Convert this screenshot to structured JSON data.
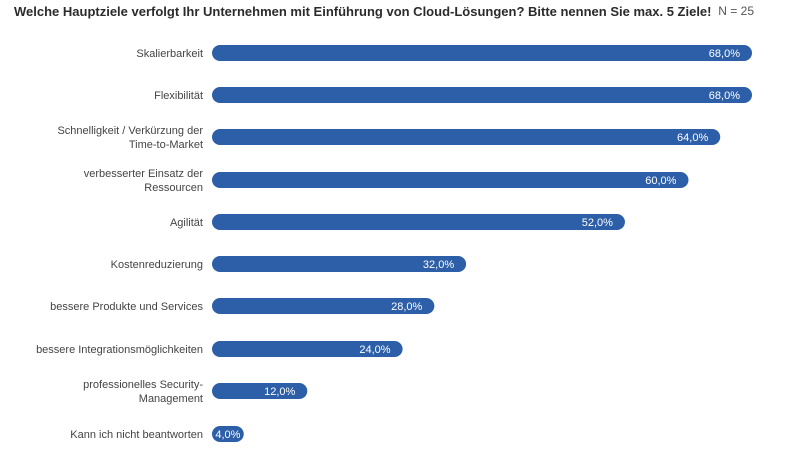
{
  "title": "Welche Hauptziele verfolgt Ihr Unternehmen mit Einführung von Cloud-Lösungen? Bitte nennen Sie max. 5 Ziele!",
  "sample_size": "N = 25",
  "colors": {
    "bar": "#2d5fa8",
    "text": "#444444"
  },
  "chart_data": {
    "type": "bar",
    "orientation": "horizontal",
    "categories": [
      [
        "Skalierbarkeit"
      ],
      [
        "Flexibilität"
      ],
      [
        "Schnelligkeit / Verkürzung der",
        "Time-to-Market"
      ],
      [
        "verbesserter Einsatz der",
        "Ressourcen"
      ],
      [
        "Agilität"
      ],
      [
        "Kostenreduzierung"
      ],
      [
        "bessere Produkte und Services"
      ],
      [
        "bessere Integrationsmöglichkeiten"
      ],
      [
        "professionelles Security-",
        "Management"
      ],
      [
        "Kann ich nicht beantworten"
      ]
    ],
    "values": [
      68.0,
      68.0,
      64.0,
      60.0,
      52.0,
      32.0,
      28.0,
      24.0,
      12.0,
      4.0
    ],
    "value_labels": [
      "68,0%",
      "68,0%",
      "64,0%",
      "60,0%",
      "52,0%",
      "32,0%",
      "28,0%",
      "24,0%",
      "12,0%",
      "4,0%"
    ],
    "xlim": [
      0,
      68
    ],
    "grid": false,
    "legend": "none"
  }
}
